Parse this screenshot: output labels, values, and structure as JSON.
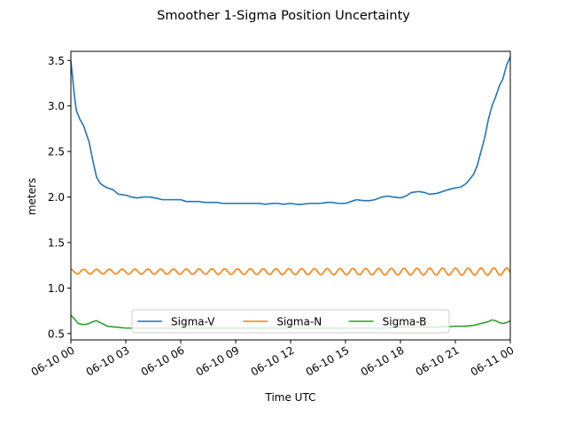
{
  "chart_data": {
    "type": "line",
    "title": "Smoother 1-Sigma Position Uncertainty",
    "xlabel": "Time UTC",
    "ylabel": "meters",
    "xlim": [
      0,
      24
    ],
    "ylim": [
      0.43,
      3.6
    ],
    "xticks": [
      0,
      3,
      6,
      9,
      12,
      15,
      18,
      21,
      24
    ],
    "xtick_labels": [
      "06-10 00",
      "06-10 03",
      "06-10 06",
      "06-10 09",
      "06-10 12",
      "06-10 15",
      "06-10 18",
      "06-10 21",
      "06-11 00"
    ],
    "yticks": [
      0.5,
      1.0,
      1.5,
      2.0,
      2.5,
      3.0,
      3.5
    ],
    "ytick_labels": [
      "0.5",
      "1.0",
      "1.5",
      "2.0",
      "2.5",
      "3.0",
      "3.5"
    ],
    "legend": {
      "placement": "lower-center",
      "columns": 3
    },
    "grid": false,
    "series": [
      {
        "name": "Sigma-V",
        "color": "#1f77b4",
        "x": [
          0,
          0.1,
          0.2,
          0.3,
          0.5,
          0.7,
          1.0,
          1.2,
          1.4,
          1.6,
          1.8,
          2.0,
          2.3,
          2.6,
          3.0,
          3.3,
          3.6,
          4.0,
          4.3,
          4.6,
          5.0,
          5.3,
          5.6,
          6.0,
          6.3,
          6.6,
          7.0,
          7.3,
          7.6,
          8.0,
          8.3,
          8.6,
          9.0,
          9.3,
          9.6,
          10.0,
          10.3,
          10.6,
          11.0,
          11.3,
          11.6,
          12.0,
          12.3,
          12.6,
          13.0,
          13.3,
          13.6,
          14.0,
          14.3,
          14.6,
          15.0,
          15.3,
          15.6,
          16.0,
          16.3,
          16.6,
          17.0,
          17.3,
          17.6,
          18.0,
          18.3,
          18.6,
          19.0,
          19.3,
          19.6,
          20.0,
          20.3,
          20.6,
          21.0,
          21.3,
          21.6,
          22.0,
          22.2,
          22.4,
          22.6,
          22.8,
          23.0,
          23.2,
          23.4,
          23.6,
          23.8,
          24.0
        ],
        "y": [
          3.49,
          3.3,
          3.1,
          2.95,
          2.85,
          2.78,
          2.6,
          2.4,
          2.22,
          2.15,
          2.12,
          2.1,
          2.08,
          2.03,
          2.02,
          2.0,
          1.99,
          2.0,
          2.0,
          1.99,
          1.97,
          1.97,
          1.97,
          1.97,
          1.95,
          1.95,
          1.95,
          1.94,
          1.94,
          1.94,
          1.93,
          1.93,
          1.93,
          1.93,
          1.93,
          1.93,
          1.93,
          1.92,
          1.93,
          1.93,
          1.92,
          1.93,
          1.92,
          1.92,
          1.93,
          1.93,
          1.93,
          1.94,
          1.94,
          1.93,
          1.93,
          1.95,
          1.97,
          1.96,
          1.96,
          1.97,
          2.0,
          2.01,
          2.0,
          1.99,
          2.01,
          2.05,
          2.06,
          2.05,
          2.03,
          2.04,
          2.06,
          2.08,
          2.1,
          2.11,
          2.15,
          2.25,
          2.35,
          2.5,
          2.65,
          2.85,
          3.0,
          3.1,
          3.22,
          3.3,
          3.45,
          3.54
        ]
      },
      {
        "name": "Sigma-N",
        "color": "#ff7f0e",
        "waveform": "sinusoid",
        "x_start": 0,
        "x_end": 24,
        "mean": 1.18,
        "amplitude_start": 0.025,
        "amplitude_end": 0.04,
        "period_hours": 0.7
      },
      {
        "name": "Sigma-B",
        "color": "#2ca02c",
        "x": [
          0,
          0.2,
          0.4,
          0.6,
          0.8,
          1.0,
          1.2,
          1.4,
          1.6,
          1.8,
          2.0,
          2.5,
          3.0,
          4.0,
          5.0,
          6.0,
          7.0,
          8.0,
          9.0,
          10.0,
          11.0,
          12.0,
          13.0,
          14.0,
          15.0,
          16.0,
          17.0,
          18.0,
          19.0,
          20.0,
          21.0,
          21.5,
          22.0,
          22.4,
          22.8,
          23.0,
          23.2,
          23.4,
          23.6,
          23.8,
          24.0
        ],
        "y": [
          0.7,
          0.66,
          0.61,
          0.6,
          0.6,
          0.61,
          0.63,
          0.64,
          0.62,
          0.6,
          0.58,
          0.57,
          0.56,
          0.56,
          0.56,
          0.56,
          0.56,
          0.56,
          0.56,
          0.56,
          0.56,
          0.56,
          0.56,
          0.56,
          0.56,
          0.56,
          0.56,
          0.57,
          0.57,
          0.57,
          0.58,
          0.58,
          0.59,
          0.61,
          0.63,
          0.65,
          0.64,
          0.62,
          0.61,
          0.62,
          0.64
        ]
      }
    ]
  }
}
